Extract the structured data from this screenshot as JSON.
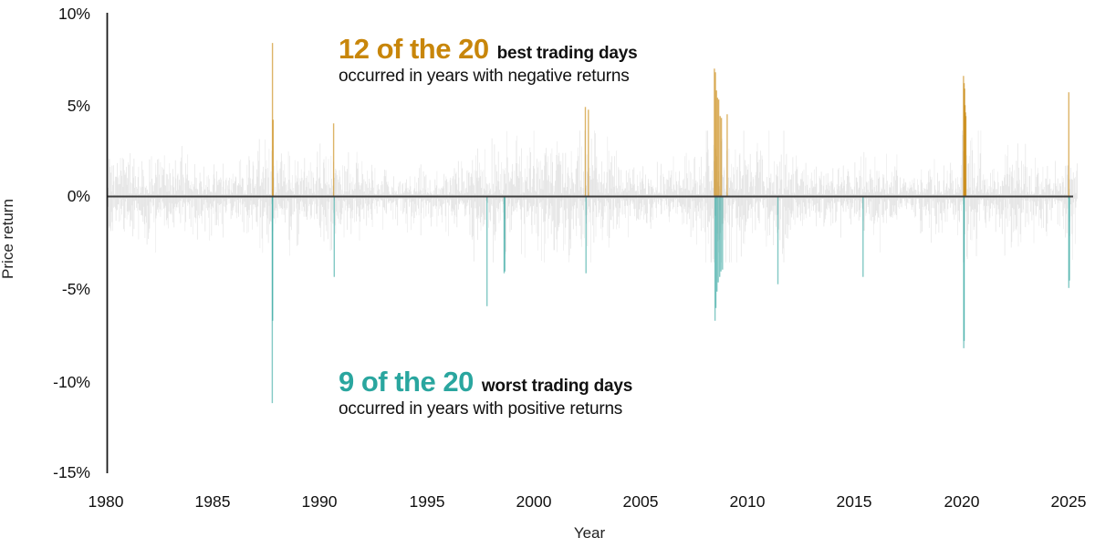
{
  "annotations": {
    "best": {
      "highlight": "12 of the 20",
      "bold_rest": "best trading days",
      "line2": "occurred in years with negative returns"
    },
    "worst": {
      "highlight": "9 of the 20",
      "bold_rest": "worst trading days",
      "line2": "occurred in years with positive returns"
    }
  },
  "chart_data": {
    "type": "bar",
    "title": "",
    "xlabel": "Year",
    "ylabel": "Price return",
    "xlim": [
      1980,
      2025.5
    ],
    "ylim": [
      -15,
      10
    ],
    "grid": false,
    "legend": "none",
    "x_tick_labels": [
      "1980",
      "1985",
      "1990",
      "1995",
      "2000",
      "2005",
      "2010",
      "2015",
      "2020",
      "2025"
    ],
    "y_tick_labels": [
      "10%",
      "5%",
      "0%",
      "-5%",
      "-10%",
      "-15%"
    ],
    "y_tick_values": [
      10,
      5,
      0,
      -5,
      -10,
      -15
    ],
    "x_tick_values": [
      1980,
      1985,
      1990,
      1995,
      2000,
      2005,
      2010,
      2015,
      2020,
      2025
    ],
    "colors": {
      "best": "#C8860A",
      "worst": "#1E9C95",
      "worst_text": "#2AA69F",
      "background_bars": "rgba(0,0,0,0.09)",
      "zero_line": "#3d3d3d",
      "axis_line": "#1a1a1a"
    },
    "best_days": [
      {
        "year": 1987.79,
        "return_pct": 8.4
      },
      {
        "year": 1987.82,
        "return_pct": 4.2
      },
      {
        "year": 1990.65,
        "return_pct": 4.0
      },
      {
        "year": 2002.42,
        "return_pct": 4.9
      },
      {
        "year": 2002.56,
        "return_pct": 4.75
      },
      {
        "year": 2008.45,
        "return_pct": 7.0
      },
      {
        "year": 2008.5,
        "return_pct": 6.8
      },
      {
        "year": 2008.55,
        "return_pct": 5.8
      },
      {
        "year": 2008.6,
        "return_pct": 5.4
      },
      {
        "year": 2008.65,
        "return_pct": 5.3
      },
      {
        "year": 2008.72,
        "return_pct": 4.4
      },
      {
        "year": 2008.78,
        "return_pct": 4.3
      },
      {
        "year": 2009.05,
        "return_pct": 4.5
      },
      {
        "year": 2020.1,
        "return_pct": 6.6
      },
      {
        "year": 2020.13,
        "return_pct": 6.2
      },
      {
        "year": 2020.15,
        "return_pct": 5.9
      },
      {
        "year": 2020.17,
        "return_pct": 5.0
      },
      {
        "year": 2020.19,
        "return_pct": 4.6
      },
      {
        "year": 2020.21,
        "return_pct": 4.4
      },
      {
        "year": 2025.02,
        "return_pct": 5.7
      }
    ],
    "worst_days": [
      {
        "year": 1987.78,
        "return_pct": -11.3
      },
      {
        "year": 1987.8,
        "return_pct": -6.8
      },
      {
        "year": 1990.68,
        "return_pct": -4.4
      },
      {
        "year": 1997.82,
        "return_pct": -6.0
      },
      {
        "year": 1998.62,
        "return_pct": -4.2
      },
      {
        "year": 1998.65,
        "return_pct": -4.1
      },
      {
        "year": 2002.45,
        "return_pct": -4.2
      },
      {
        "year": 2008.48,
        "return_pct": -6.8
      },
      {
        "year": 2008.52,
        "return_pct": -6.1
      },
      {
        "year": 2008.57,
        "return_pct": -5.2
      },
      {
        "year": 2008.63,
        "return_pct": -4.7
      },
      {
        "year": 2008.7,
        "return_pct": -4.4
      },
      {
        "year": 2008.76,
        "return_pct": -4.1
      },
      {
        "year": 2008.83,
        "return_pct": -4.0
      },
      {
        "year": 2011.42,
        "return_pct": -4.8
      },
      {
        "year": 2015.4,
        "return_pct": -4.4
      },
      {
        "year": 2020.11,
        "return_pct": -8.3
      },
      {
        "year": 2020.13,
        "return_pct": -7.9
      },
      {
        "year": 2025.02,
        "return_pct": -5.0
      },
      {
        "year": 2025.05,
        "return_pct": -4.6
      }
    ],
    "background_daily_returns": {
      "description": "dense gray hairlines of daily price returns, mostly within ±3%",
      "start_year": 1980.05,
      "end_year": 2025.42,
      "volatility_by_year_from_1980": [
        0.95,
        0.9,
        1.0,
        0.85,
        0.8,
        0.75,
        0.9,
        1.25,
        1.0,
        0.9,
        1.0,
        0.9,
        0.7,
        0.6,
        0.7,
        0.6,
        0.75,
        1.1,
        1.25,
        1.1,
        1.3,
        1.3,
        1.5,
        1.1,
        0.75,
        0.7,
        0.75,
        1.0,
        1.9,
        1.5,
        1.1,
        1.3,
        0.85,
        0.7,
        0.65,
        1.0,
        0.95,
        0.45,
        0.95,
        0.8,
        1.6,
        0.8,
        1.25,
        0.8,
        0.8,
        1.1
      ]
    }
  }
}
